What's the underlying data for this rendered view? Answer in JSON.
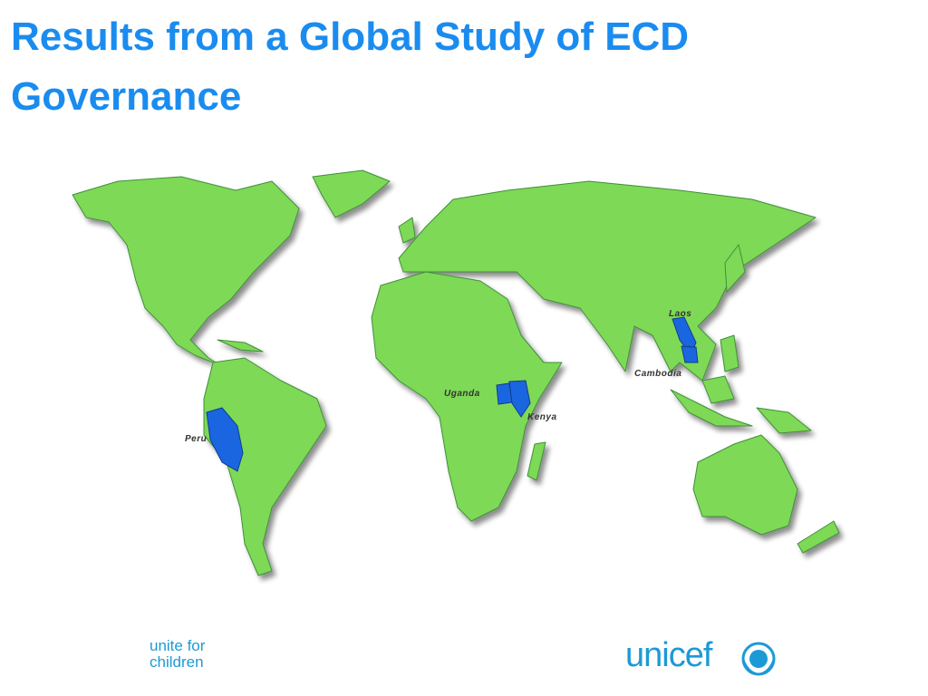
{
  "header": {
    "title": "Results from a Global Study of ECD Governance"
  },
  "map": {
    "labels": [
      "Laos",
      "Cambodia",
      "Uganda",
      "Kenya",
      "Peru"
    ]
  },
  "footer": {
    "tagline": [
      "unite for",
      "children"
    ],
    "logo": "unicef"
  }
}
